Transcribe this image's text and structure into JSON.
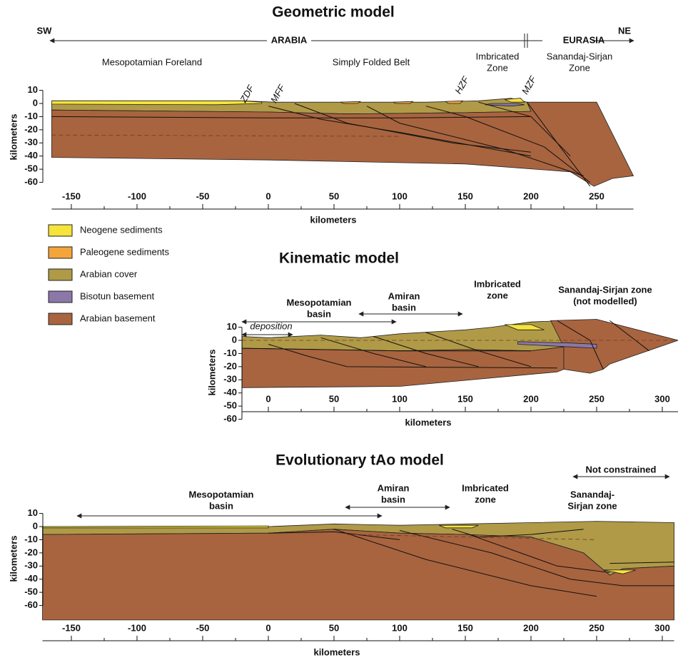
{
  "panels": [
    {
      "title": "Geometric model",
      "labels": [
        [
          "SW"
        ],
        [
          "NE"
        ],
        [
          "ARABIA"
        ],
        [
          "EURASIA"
        ],
        [
          "Mesopotamian Foreland"
        ],
        [
          "Simply Folded Belt"
        ],
        [
          "Imbricated",
          "Zone"
        ],
        [
          "Sanandaj-Sirjan",
          "Zone"
        ],
        [
          "ZDF"
        ],
        [
          "MFF"
        ],
        [
          "HZF"
        ],
        [
          "MZF"
        ]
      ],
      "xlabel": "kilometers",
      "ylabel": "kilometers",
      "xlim": [
        -165,
        278
      ],
      "ylim": [
        -60,
        10
      ],
      "xticks": [
        -150,
        -100,
        -50,
        0,
        50,
        100,
        150,
        200,
        250
      ],
      "yticks": [
        10,
        0,
        -10,
        -20,
        -30,
        -40,
        -50,
        -60
      ]
    },
    {
      "title": "Kinematic model",
      "labels": [
        [
          "Mesopotamian",
          "basin"
        ],
        [
          "Amiran",
          "basin"
        ],
        [
          "Imbricated",
          "zone"
        ],
        [
          "Sanandaj-Sirjan zone",
          "(not modelled)"
        ],
        [
          "deposition"
        ]
      ],
      "xlabel": "kilometers",
      "ylabel": "kilometers",
      "xlim": [
        -20,
        312
      ],
      "ylim": [
        -60,
        10
      ],
      "xticks": [
        0,
        50,
        100,
        150,
        200,
        250,
        300
      ],
      "yticks": [
        10,
        0,
        -10,
        -20,
        -30,
        -40,
        -50,
        -60
      ]
    },
    {
      "title": "Evolutionary tAo model",
      "labels": [
        [
          "Mesopotamian",
          "basin"
        ],
        [
          "Amiran",
          "basin"
        ],
        [
          "Imbricated",
          "zone"
        ],
        [
          "Sanandaj-",
          "Sirjan zone"
        ],
        [
          "Not constrained"
        ]
      ],
      "xlabel": "kilometers",
      "ylabel": "kilometers",
      "xlim": [
        -172,
        309
      ],
      "ylim": [
        -60,
        10
      ],
      "xticks": [
        -150,
        -100,
        -50,
        0,
        50,
        100,
        150,
        200,
        250,
        300
      ],
      "yticks": [
        10,
        0,
        -10,
        -20,
        -30,
        -40,
        -50,
        -60
      ]
    }
  ],
  "legend": [
    {
      "label": "Neogene sediments",
      "color": "#f6e33c"
    },
    {
      "label": "Paleogene sediments",
      "color": "#f3a53c"
    },
    {
      "label": "Arabian cover",
      "color": "#b09a47"
    },
    {
      "label": "Bisotun basement",
      "color": "#8b78a8"
    },
    {
      "label": "Arabian basement",
      "color": "#a8643f"
    }
  ]
}
